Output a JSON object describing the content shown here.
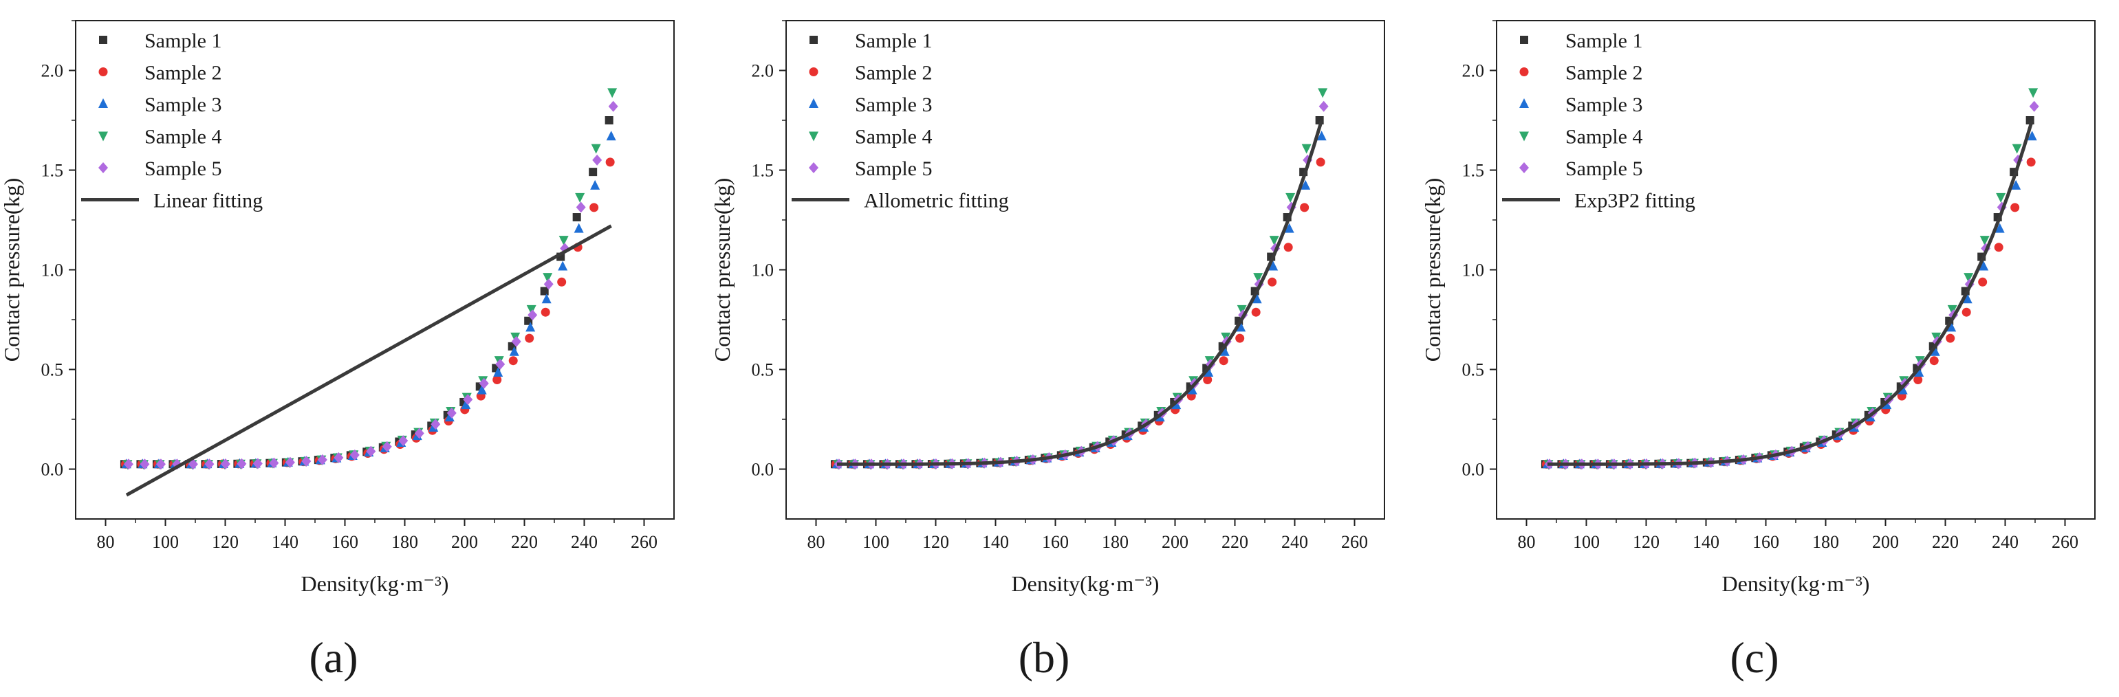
{
  "figure": {
    "colors": {
      "Sample 1": "#333333",
      "Sample 2": "#e8312f",
      "Sample 3": "#1f6fd6",
      "Sample 4": "#2ea86b",
      "Sample 5": "#b06ae0",
      "fit": "#3a3a3a"
    }
  },
  "chart_data": [
    {
      "panel_label": "(a)",
      "type": "scatter",
      "xlabel": "Density(kg·m⁻³)",
      "ylabel": "Contact pressure(kg)",
      "xlim": [
        70,
        270
      ],
      "ylim": [
        -0.25,
        2.25
      ],
      "xticks": [
        "80",
        "100",
        "120",
        "140",
        "160",
        "180",
        "200",
        "220",
        "240",
        "260"
      ],
      "yticks": [
        "0.0",
        "0.5",
        "1.0",
        "1.5",
        "2.0"
      ],
      "legend": [
        "Sample 1",
        "Sample 2",
        "Sample 3",
        "Sample 4",
        "Sample 5",
        "Linear fitting"
      ],
      "legend_position": "top-left",
      "density_range": [
        87,
        249
      ],
      "points_per_series": 31,
      "series": [
        {
          "name": "Sample 1",
          "marker": "square",
          "end_value": 1.75
        },
        {
          "name": "Sample 2",
          "marker": "circle",
          "end_value": 1.54
        },
        {
          "name": "Sample 3",
          "marker": "triangle-up",
          "end_value": 1.67
        },
        {
          "name": "Sample 4",
          "marker": "triangle-down",
          "end_value": 1.89
        },
        {
          "name": "Sample 5",
          "marker": "diamond",
          "end_value": 1.82
        }
      ],
      "fit": {
        "name": "Linear fitting",
        "type": "linear",
        "x": [
          87,
          249
        ],
        "y": [
          -0.13,
          1.22
        ]
      }
    },
    {
      "panel_label": "(b)",
      "type": "scatter",
      "xlabel": "Density(kg·m⁻³)",
      "ylabel": "Contact pressure(kg)",
      "xlim": [
        70,
        270
      ],
      "ylim": [
        -0.25,
        2.25
      ],
      "xticks": [
        "80",
        "100",
        "120",
        "140",
        "160",
        "180",
        "200",
        "220",
        "240",
        "260"
      ],
      "yticks": [
        "0.0",
        "0.5",
        "1.0",
        "1.5",
        "2.0"
      ],
      "legend": [
        "Sample 1",
        "Sample 2",
        "Sample 3",
        "Sample 4",
        "Sample 5",
        "Allometric fitting"
      ],
      "legend_position": "top-left",
      "density_range": [
        87,
        249
      ],
      "points_per_series": 31,
      "series": [
        {
          "name": "Sample 1",
          "marker": "square",
          "end_value": 1.75
        },
        {
          "name": "Sample 2",
          "marker": "circle",
          "end_value": 1.54
        },
        {
          "name": "Sample 3",
          "marker": "triangle-up",
          "end_value": 1.67
        },
        {
          "name": "Sample 4",
          "marker": "triangle-down",
          "end_value": 1.89
        },
        {
          "name": "Sample 5",
          "marker": "diamond",
          "end_value": 1.82
        }
      ],
      "fit": {
        "name": "Allometric fitting",
        "type": "curve",
        "x": [
          87,
          249
        ],
        "y": [
          0.02,
          1.75
        ]
      }
    },
    {
      "panel_label": "(c)",
      "type": "scatter",
      "xlabel": "Density(kg·m⁻³)",
      "ylabel": "Contact pressure(kg)",
      "xlim": [
        70,
        270
      ],
      "ylim": [
        -0.25,
        2.25
      ],
      "xticks": [
        "80",
        "100",
        "120",
        "140",
        "160",
        "180",
        "200",
        "220",
        "240",
        "260"
      ],
      "yticks": [
        "0.0",
        "0.5",
        "1.0",
        "1.5",
        "2.0"
      ],
      "legend": [
        "Sample 1",
        "Sample 2",
        "Sample 3",
        "Sample 4",
        "Sample 5",
        "Exp3P2 fitting"
      ],
      "legend_position": "top-left",
      "density_range": [
        87,
        249
      ],
      "points_per_series": 31,
      "series": [
        {
          "name": "Sample 1",
          "marker": "square",
          "end_value": 1.75
        },
        {
          "name": "Sample 2",
          "marker": "circle",
          "end_value": 1.54
        },
        {
          "name": "Sample 3",
          "marker": "triangle-up",
          "end_value": 1.67
        },
        {
          "name": "Sample 4",
          "marker": "triangle-down",
          "end_value": 1.89
        },
        {
          "name": "Sample 5",
          "marker": "diamond",
          "end_value": 1.82
        }
      ],
      "fit": {
        "name": "Exp3P2 fitting",
        "type": "curve",
        "x": [
          87,
          249
        ],
        "y": [
          0.02,
          1.75
        ]
      }
    }
  ]
}
